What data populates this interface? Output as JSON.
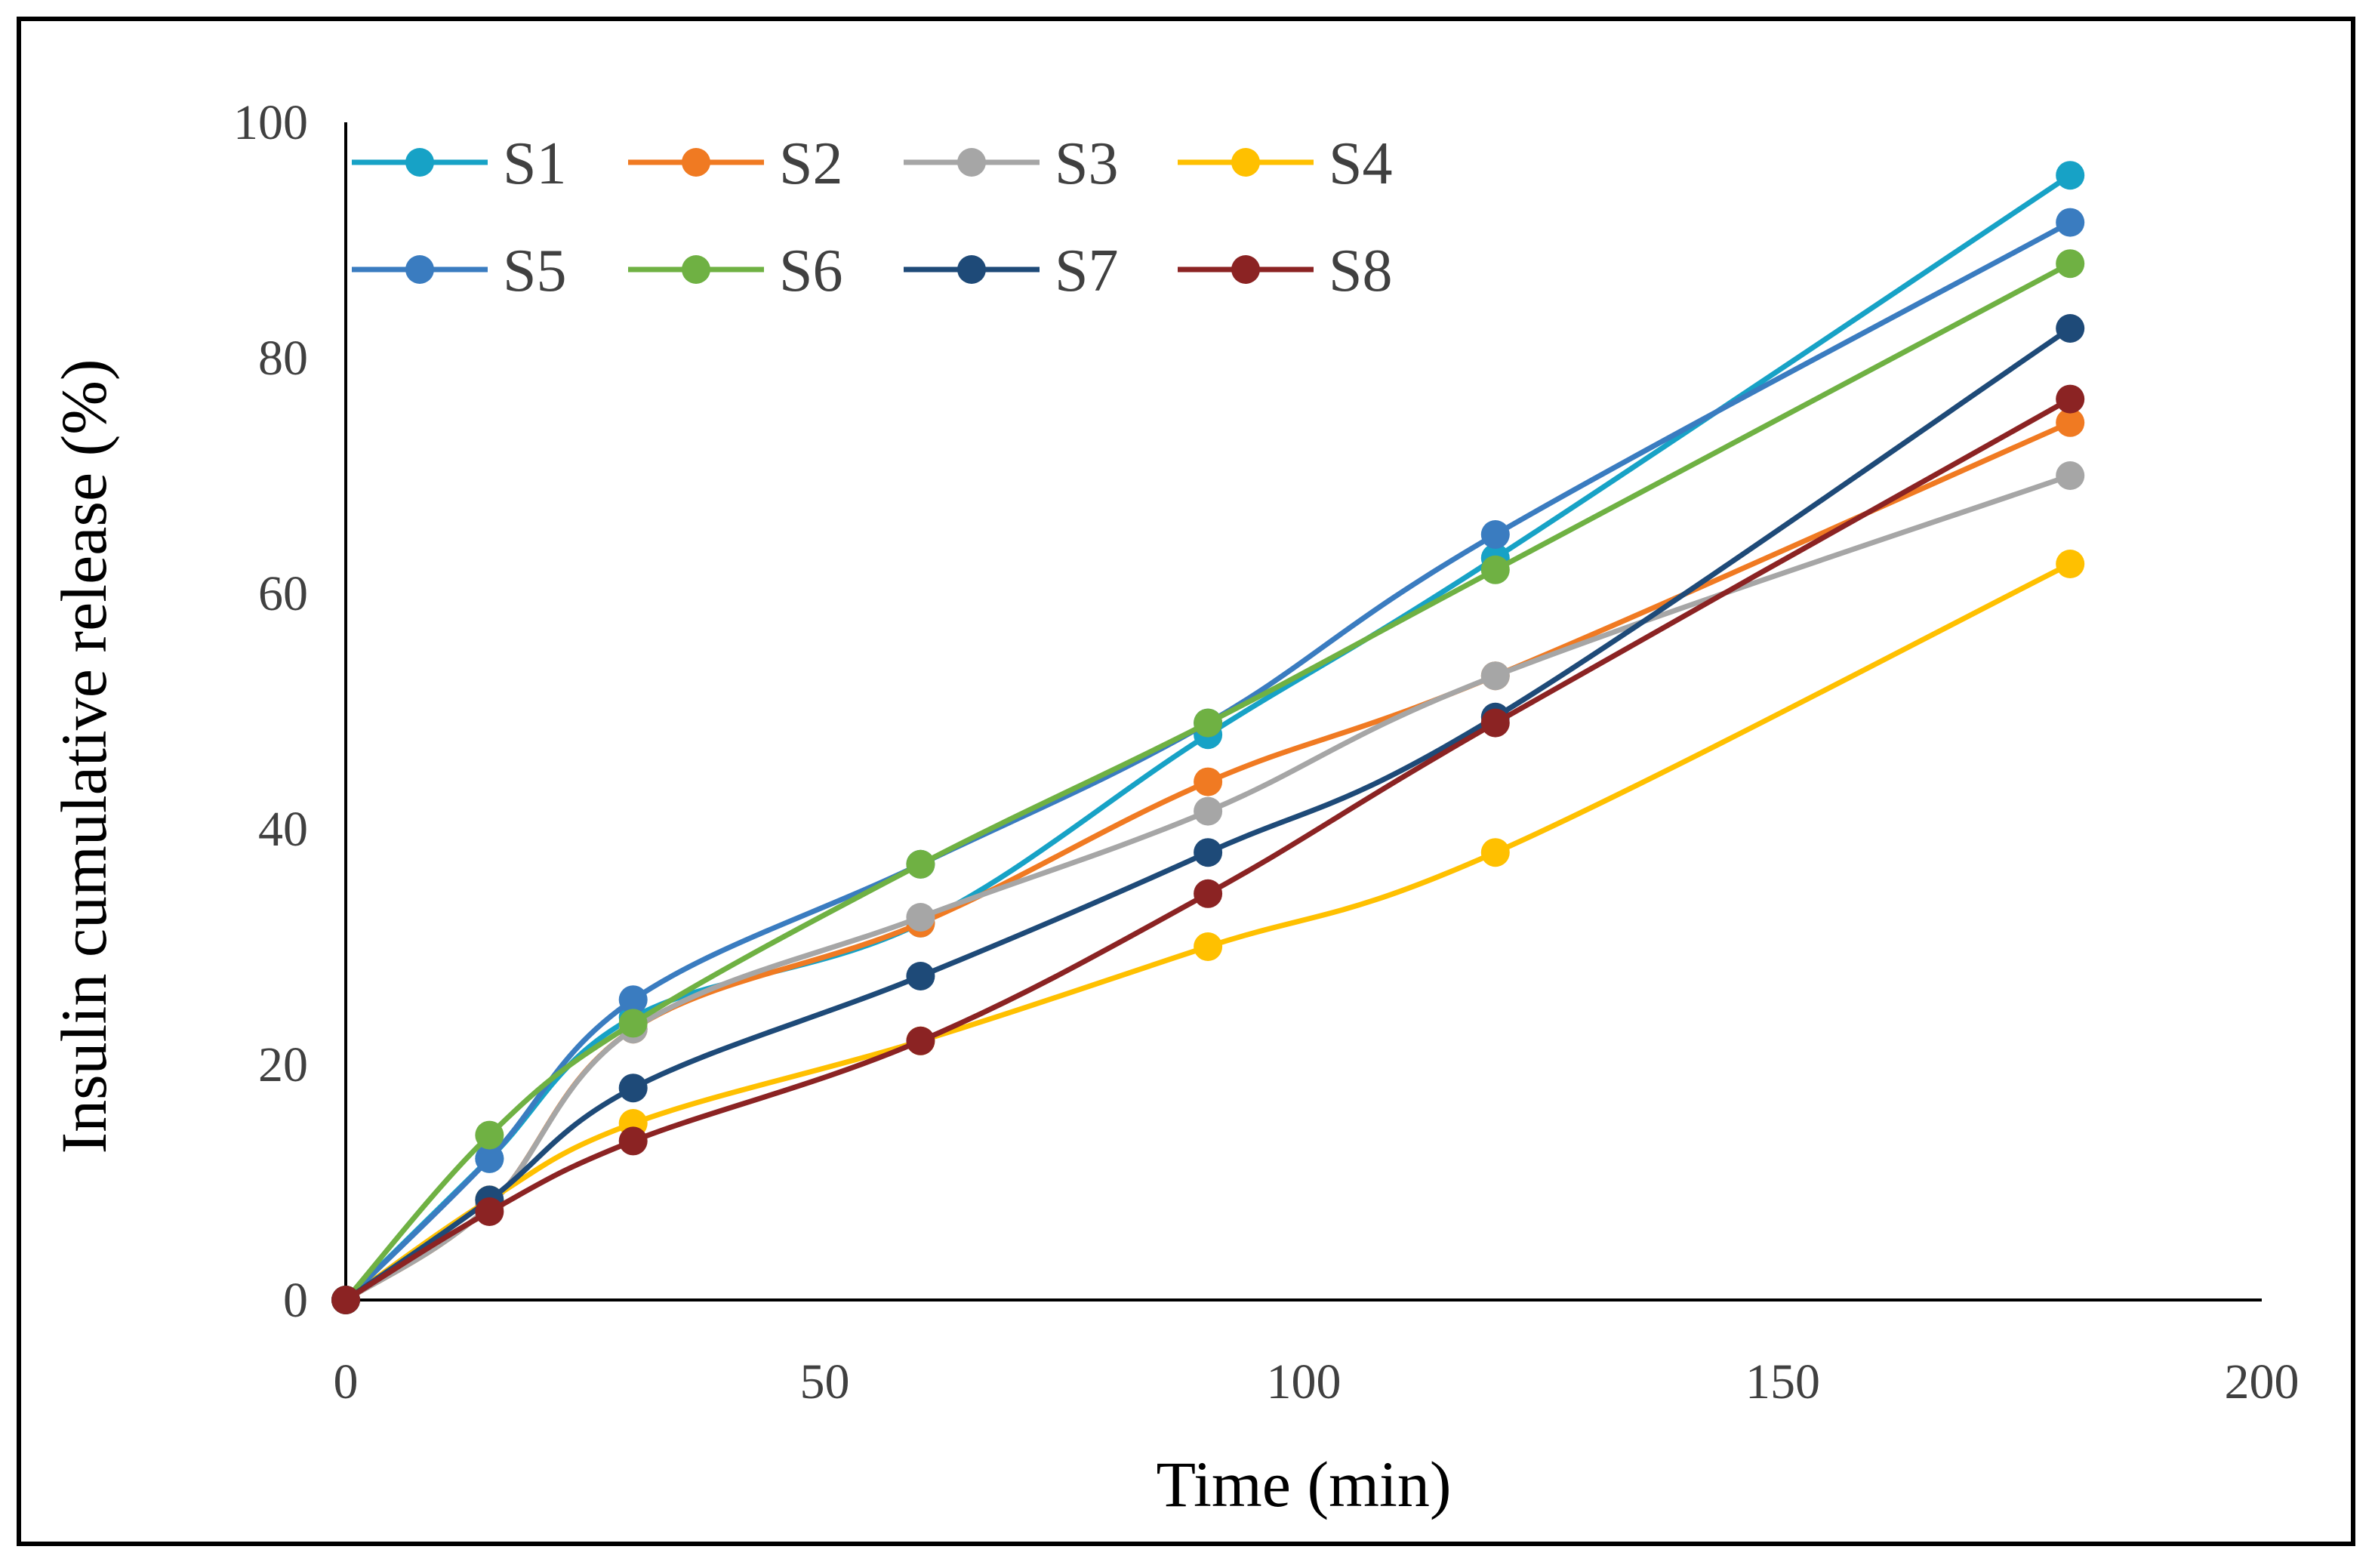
{
  "chart_data": {
    "type": "line",
    "xlabel": "Time (min)",
    "ylabel": "Insulin cumulative release (%)",
    "xlim": [
      0,
      200
    ],
    "ylim": [
      0,
      100
    ],
    "x_ticks": [
      0,
      50,
      100,
      150,
      200
    ],
    "y_ticks": [
      0,
      20,
      40,
      60,
      80,
      100
    ],
    "grid": false,
    "legend": "top-left, inside plot, 2 rows x 4 columns",
    "x": [
      0,
      15,
      30,
      60,
      90,
      120,
      180
    ],
    "series": [
      {
        "name": "S1",
        "color": "#17a2c6",
        "values": [
          0,
          12,
          24,
          32,
          48,
          63,
          95.5
        ]
      },
      {
        "name": "S2",
        "color": "#f07a22",
        "values": [
          0,
          8,
          23,
          32,
          44,
          53,
          74.5
        ]
      },
      {
        "name": "S3",
        "color": "#a6a6a6",
        "values": [
          0,
          8,
          23,
          32.5,
          41.5,
          53,
          70
        ]
      },
      {
        "name": "S4",
        "color": "#ffc000",
        "values": [
          0,
          8.5,
          15,
          22,
          30,
          38,
          62.5
        ]
      },
      {
        "name": "S5",
        "color": "#3a7cc0",
        "values": [
          0,
          12,
          25.5,
          37,
          49,
          65,
          91.5
        ]
      },
      {
        "name": "S6",
        "color": "#6fb143",
        "values": [
          0,
          14,
          23.5,
          37,
          49,
          62,
          88
        ]
      },
      {
        "name": "S7",
        "color": "#1e4a78",
        "values": [
          0,
          8.5,
          18,
          27.5,
          38,
          49.5,
          82.5
        ]
      },
      {
        "name": "S8",
        "color": "#8b2323",
        "values": [
          0,
          7.5,
          13.5,
          22,
          34.5,
          49,
          76.5
        ]
      }
    ]
  }
}
